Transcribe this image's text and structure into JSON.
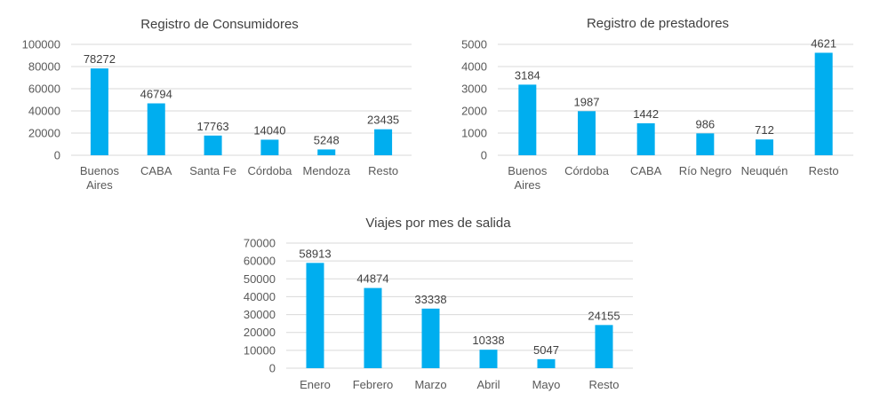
{
  "colors": {
    "bar": "#00aeef",
    "grid": "#d9d9d9",
    "text": "#404040"
  },
  "chart_data": [
    {
      "type": "bar",
      "title": "Registro de Consumidores",
      "categories": [
        [
          "Buenos",
          "Aires"
        ],
        [
          "CABA"
        ],
        [
          "Santa Fe"
        ],
        [
          "Córdoba"
        ],
        [
          "Mendoza"
        ],
        [
          "Resto"
        ]
      ],
      "values": [
        78272,
        46794,
        17763,
        14040,
        5248,
        23435
      ],
      "yticks": [
        0,
        20000,
        40000,
        60000,
        80000,
        100000
      ],
      "ylim": [
        0,
        100000
      ],
      "grid": true,
      "legend": "none"
    },
    {
      "type": "bar",
      "title": "Registro de prestadores",
      "categories": [
        [
          "Buenos",
          "Aires"
        ],
        [
          "Córdoba"
        ],
        [
          "CABA"
        ],
        [
          "Río Negro"
        ],
        [
          "Neuquén"
        ],
        [
          "Resto"
        ]
      ],
      "values": [
        3184,
        1987,
        1442,
        986,
        712,
        4621
      ],
      "yticks": [
        0,
        1000,
        2000,
        3000,
        4000,
        5000
      ],
      "ylim": [
        0,
        5000
      ],
      "grid": true,
      "legend": "none"
    },
    {
      "type": "bar",
      "title": "Viajes por mes de salida",
      "categories": [
        [
          "Enero"
        ],
        [
          "Febrero"
        ],
        [
          "Marzo"
        ],
        [
          "Abril"
        ],
        [
          "Mayo"
        ],
        [
          "Resto"
        ]
      ],
      "values": [
        58913,
        44874,
        33338,
        10338,
        5047,
        24155
      ],
      "yticks": [
        0,
        10000,
        20000,
        30000,
        40000,
        50000,
        60000,
        70000
      ],
      "ylim": [
        0,
        70000
      ],
      "grid": true,
      "legend": "none"
    }
  ]
}
